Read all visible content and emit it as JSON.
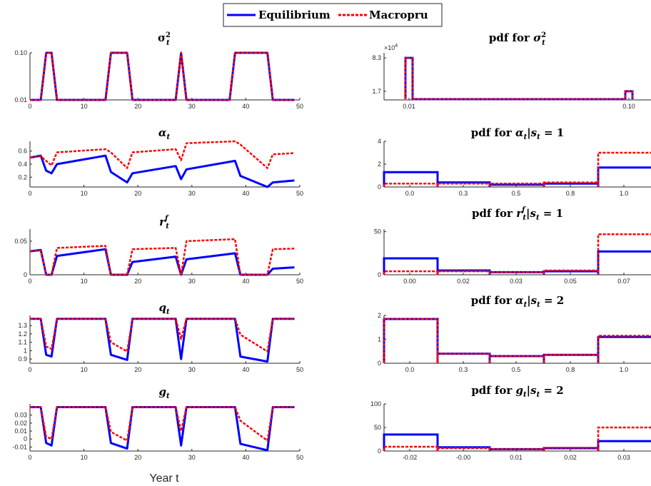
{
  "legend": {
    "series": [
      {
        "name": "Equilibrium",
        "color": "#0000ff",
        "style": "solid"
      },
      {
        "name": "Macropru",
        "color": "#ff0000",
        "style": "dashed"
      }
    ],
    "placement": "top-center"
  },
  "xlabel": "Year t",
  "chart_data": [
    {
      "id": "sigma2",
      "type": "line",
      "title": "σ²_t",
      "x": [
        0,
        1,
        2,
        3,
        4,
        5,
        6,
        7,
        8,
        9,
        10,
        11,
        12,
        13,
        14,
        15,
        16,
        17,
        18,
        19,
        20,
        21,
        22,
        23,
        24,
        25,
        26,
        27,
        28,
        29,
        30,
        31,
        32,
        33,
        34,
        35,
        36,
        37,
        38,
        39,
        40,
        41,
        42,
        43,
        44,
        45,
        46,
        47,
        48,
        49
      ],
      "xlim": [
        0,
        50
      ],
      "xticks": [
        "0",
        "10",
        "20",
        "30",
        "40",
        "50"
      ],
      "ylim": [
        0.01,
        0.1
      ],
      "yticks": [
        "0.01",
        "0.10"
      ],
      "series": [
        {
          "name": "Equilibrium",
          "values": [
            0.01,
            0.01,
            0.01,
            0.1,
            0.1,
            0.01,
            0.01,
            0.01,
            0.01,
            0.01,
            0.01,
            0.01,
            0.01,
            0.01,
            0.01,
            0.1,
            0.1,
            0.1,
            0.1,
            0.01,
            0.01,
            0.01,
            0.01,
            0.01,
            0.01,
            0.01,
            0.01,
            0.01,
            0.1,
            0.01,
            0.01,
            0.01,
            0.01,
            0.01,
            0.01,
            0.01,
            0.01,
            0.01,
            0.1,
            0.1,
            0.1,
            0.1,
            0.1,
            0.1,
            0.1,
            0.01,
            0.01,
            0.01,
            0.01,
            0.01
          ]
        },
        {
          "name": "Macropru",
          "values": [
            0.01,
            0.01,
            0.01,
            0.1,
            0.1,
            0.01,
            0.01,
            0.01,
            0.01,
            0.01,
            0.01,
            0.01,
            0.01,
            0.01,
            0.01,
            0.1,
            0.1,
            0.1,
            0.1,
            0.01,
            0.01,
            0.01,
            0.01,
            0.01,
            0.01,
            0.01,
            0.01,
            0.01,
            0.1,
            0.01,
            0.01,
            0.01,
            0.01,
            0.01,
            0.01,
            0.01,
            0.01,
            0.01,
            0.1,
            0.1,
            0.1,
            0.1,
            0.1,
            0.1,
            0.1,
            0.01,
            0.01,
            0.01,
            0.01,
            0.01
          ]
        }
      ]
    },
    {
      "id": "alpha",
      "type": "line",
      "title": "α_t",
      "x": [
        0,
        2,
        3,
        4,
        5,
        14,
        15,
        18,
        19,
        27,
        28,
        29,
        38,
        39,
        44,
        45,
        49
      ],
      "xlim": [
        0,
        50
      ],
      "xticks": [
        "0",
        "10",
        "20",
        "30",
        "40",
        "50"
      ],
      "ylim": [
        0.05,
        0.75
      ],
      "yticks": [
        "0.2",
        "0.4",
        "0.6"
      ],
      "series": [
        {
          "name": "Equilibrium",
          "values": [
            0.5,
            0.53,
            0.3,
            0.26,
            0.4,
            0.53,
            0.28,
            0.12,
            0.26,
            0.37,
            0.17,
            0.32,
            0.45,
            0.22,
            0.05,
            0.12,
            0.15
          ]
        },
        {
          "name": "Macropru",
          "values": [
            0.5,
            0.52,
            0.45,
            0.38,
            0.58,
            0.63,
            0.58,
            0.34,
            0.58,
            0.63,
            0.46,
            0.72,
            0.75,
            0.7,
            0.34,
            0.55,
            0.57
          ]
        }
      ]
    },
    {
      "id": "rf",
      "type": "line",
      "title": "r^f_t",
      "x": [
        0,
        2,
        3,
        4,
        5,
        14,
        15,
        18,
        19,
        27,
        28,
        29,
        38,
        39,
        44,
        45,
        49
      ],
      "xlim": [
        0,
        50
      ],
      "xticks": [
        "0",
        "10",
        "20",
        "30",
        "40",
        "50"
      ],
      "ylim": [
        0,
        0.068
      ],
      "yticks": [
        "0",
        "0.05"
      ],
      "series": [
        {
          "name": "Equilibrium",
          "values": [
            0.035,
            0.037,
            0,
            0,
            0.028,
            0.038,
            0,
            0,
            0.019,
            0.027,
            0,
            0.023,
            0.032,
            0,
            0,
            0.009,
            0.011
          ]
        },
        {
          "name": "Macropru",
          "values": [
            0.035,
            0.036,
            0,
            0,
            0.04,
            0.043,
            0,
            0,
            0.038,
            0.04,
            0,
            0.05,
            0.053,
            0,
            0,
            0.038,
            0.039
          ]
        }
      ]
    },
    {
      "id": "q",
      "type": "line",
      "title": "q_t",
      "x": [
        0,
        2,
        3,
        4,
        5,
        14,
        15,
        18,
        19,
        27,
        28,
        29,
        38,
        39,
        44,
        45,
        49
      ],
      "xlim": [
        0,
        50
      ],
      "xticks": [
        "0",
        "10",
        "20",
        "30",
        "40",
        "50"
      ],
      "ylim": [
        0.85,
        1.42
      ],
      "yticks": [
        "0.9",
        "1",
        "1.1",
        "1.2",
        "1.3"
      ],
      "series": [
        {
          "name": "Equilibrium",
          "values": [
            1.38,
            1.38,
            0.95,
            0.93,
            1.38,
            1.38,
            0.95,
            0.89,
            1.38,
            1.38,
            0.9,
            1.38,
            1.38,
            0.93,
            0.87,
            1.38,
            1.38
          ]
        },
        {
          "name": "Macropru",
          "values": [
            1.38,
            1.38,
            1.05,
            1.02,
            1.38,
            1.38,
            1.1,
            0.99,
            1.38,
            1.38,
            1.14,
            1.38,
            1.38,
            1.19,
            0.99,
            1.38,
            1.38
          ]
        }
      ]
    },
    {
      "id": "g",
      "type": "line",
      "title": "g_t",
      "x": [
        0,
        2,
        3,
        4,
        5,
        14,
        15,
        18,
        19,
        27,
        28,
        29,
        38,
        39,
        44,
        45,
        49
      ],
      "xlim": [
        0,
        50
      ],
      "xticks": [
        "0",
        "10",
        "20",
        "30",
        "40",
        "50"
      ],
      "ylim": [
        -0.015,
        0.044
      ],
      "yticks": [
        "-0.01",
        "0",
        "0.01",
        "0.02",
        "0.03"
      ],
      "series": [
        {
          "name": "Equilibrium",
          "values": [
            0.04,
            0.04,
            -0.005,
            -0.008,
            0.04,
            0.04,
            -0.005,
            -0.012,
            0.04,
            0.04,
            -0.008,
            0.04,
            0.04,
            -0.006,
            -0.014,
            0.04,
            0.04
          ]
        },
        {
          "name": "Macropru",
          "values": [
            0.04,
            0.04,
            0.003,
            0.0,
            0.04,
            0.04,
            0.009,
            -0.002,
            0.04,
            0.04,
            0.01,
            0.04,
            0.04,
            0.023,
            -0.002,
            0.04,
            0.04
          ]
        }
      ]
    },
    {
      "id": "pdf-sigma2",
      "type": "bar",
      "title": "pdf for σ²_t",
      "xticks": [
        "0.01",
        "0.10"
      ],
      "yticks": [
        "1.7",
        "8.3"
      ],
      "yexponent": "×10^4",
      "ylim": [
        0,
        9.3
      ],
      "edges": [
        0.01,
        0.1
      ],
      "series": [
        {
          "name": "Equilibrium",
          "values": [
            8.3,
            1.7
          ]
        },
        {
          "name": "Macropru",
          "values": [
            8.3,
            1.7
          ]
        }
      ]
    },
    {
      "id": "pdf-alpha-s1",
      "type": "bar",
      "title": "pdf for α_t|s_t = 1",
      "xticks": [
        "0.0",
        "0.3",
        "0.5",
        "0.8",
        "1.0"
      ],
      "yticks": [
        "0",
        "2",
        "4"
      ],
      "ylim": [
        0,
        4
      ],
      "edges": [
        -0.15,
        0.15,
        0.4,
        0.65,
        0.9,
        1.2
      ],
      "series": [
        {
          "name": "Equilibrium",
          "values": [
            1.3,
            0.4,
            0.2,
            0.3,
            1.7
          ]
        },
        {
          "name": "Macropru",
          "values": [
            0.3,
            0.3,
            0.3,
            0.4,
            3.0
          ]
        }
      ]
    },
    {
      "id": "pdf-rf-s1",
      "type": "bar",
      "title": "pdf for r^f_t|s_t = 1",
      "xticks": [
        "0.00",
        "0.02",
        "0.03",
        "0.05",
        "0.07"
      ],
      "yticks": [
        "0",
        "50"
      ],
      "ylim": [
        0,
        53
      ],
      "edges": [
        -0.0075,
        0.0075,
        0.0225,
        0.0375,
        0.0525,
        0.0725
      ],
      "series": [
        {
          "name": "Equilibrium",
          "values": [
            19,
            5,
            3,
            4,
            27
          ]
        },
        {
          "name": "Macropru",
          "values": [
            4,
            4,
            3,
            5,
            47
          ]
        }
      ]
    },
    {
      "id": "pdf-alpha-s2",
      "type": "bar",
      "title": "pdf for α_t|s_t = 2",
      "xticks": [
        "0.0",
        "0.3",
        "0.5",
        "0.8",
        "1.0"
      ],
      "yticks": [
        "0",
        "1",
        "2"
      ],
      "ylim": [
        0,
        2
      ],
      "edges": [
        -0.15,
        0.15,
        0.4,
        0.65,
        0.9,
        1.2
      ],
      "series": [
        {
          "name": "Equilibrium",
          "values": [
            1.85,
            0.4,
            0.3,
            0.35,
            1.1
          ]
        },
        {
          "name": "Macropru",
          "values": [
            1.85,
            0.4,
            0.3,
            0.35,
            1.15
          ]
        }
      ]
    },
    {
      "id": "pdf-g-s2",
      "type": "bar",
      "title": "pdf for g_t|s_t = 2",
      "xticks": [
        "-0.02",
        "-0.00",
        "0.01",
        "0.02",
        "0.03"
      ],
      "yticks": [
        "0",
        "50",
        "100"
      ],
      "ylim": [
        0,
        100
      ],
      "edges": [
        -0.0275,
        -0.0125,
        0.0025,
        0.0175,
        0.0325,
        0.0425
      ],
      "series": [
        {
          "name": "Equilibrium",
          "values": [
            35,
            8,
            4,
            6,
            21
          ]
        },
        {
          "name": "Macropru",
          "values": [
            9,
            6,
            4,
            7,
            50
          ]
        }
      ]
    }
  ]
}
